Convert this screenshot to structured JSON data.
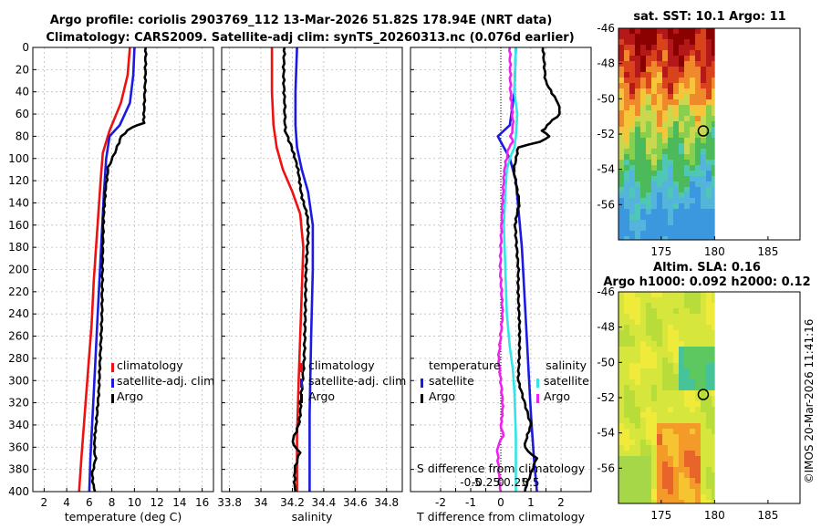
{
  "title": {
    "line1": "Argo profile: coriolis 2903769_112 13-Mar-2026 51.82S 178.94E (NRT data)",
    "line2": "Climatology: CARS2009. Satellite-adj clim: synTS_20260313.nc (0.076d earlier)"
  },
  "stamp": "©IMOS 20-Mar-2026 11:41:16",
  "colors": {
    "climatology": "#ee1111",
    "satellite": "#1a1ae0",
    "argo": "#000000",
    "sat_salinity": "#33e5e5",
    "argo_salinity": "#ee22ee"
  },
  "chart_data": [
    {
      "id": "temperature",
      "type": "line",
      "xlabel": "temperature (deg C)",
      "xlim": [
        1,
        17
      ],
      "xticks": [
        2,
        4,
        6,
        8,
        10,
        12,
        14,
        16
      ],
      "ylim": [
        0,
        400
      ],
      "yticks": [
        0,
        20,
        40,
        60,
        80,
        100,
        120,
        140,
        160,
        180,
        200,
        220,
        240,
        260,
        280,
        300,
        320,
        340,
        360,
        380,
        400
      ],
      "legend": {
        "labels": [
          "climatology",
          "satellite-adj. clim",
          "Argo"
        ]
      },
      "series": [
        {
          "name": "climatology",
          "color": "climatology",
          "x": [
            9.6,
            9.4,
            8.8,
            7.8,
            7.2,
            7.0,
            6.8,
            6.6,
            6.4,
            6.2,
            5.9,
            5.6,
            5.3,
            5.1
          ],
          "y": [
            0,
            25,
            50,
            75,
            95,
            120,
            150,
            180,
            210,
            250,
            290,
            330,
            370,
            400
          ]
        },
        {
          "name": "satellite-adj. clim",
          "color": "satellite",
          "x": [
            10.0,
            9.9,
            9.6,
            8.7,
            7.8,
            7.5,
            7.3,
            7.1,
            6.9,
            6.7,
            6.5,
            6.3,
            6.1,
            6.0
          ],
          "y": [
            0,
            25,
            50,
            70,
            80,
            100,
            130,
            170,
            210,
            250,
            290,
            330,
            370,
            400
          ]
        },
        {
          "name": "Argo",
          "color": "argo",
          "x": [
            11.0,
            11.0,
            10.9,
            10.8,
            9.8,
            8.8,
            8.2,
            7.7,
            7.4,
            7.3,
            7.2,
            7.1,
            6.9,
            6.8,
            6.6,
            6.5,
            6.6,
            6.3,
            6.5
          ],
          "y": [
            0,
            30,
            60,
            68,
            72,
            80,
            95,
            108,
            125,
            160,
            200,
            240,
            280,
            310,
            340,
            360,
            370,
            385,
            400
          ]
        }
      ]
    },
    {
      "id": "salinity",
      "type": "line",
      "xlabel": "salinity",
      "xlim": [
        33.75,
        34.9
      ],
      "xticks": [
        33.8,
        34,
        34.2,
        34.4,
        34.6,
        34.8
      ],
      "xticklabels": [
        "33.8",
        "34",
        "34.2",
        "34.4",
        "34.6",
        "34.8"
      ],
      "ylim": [
        0,
        400
      ],
      "legend": {
        "labels": [
          "climatology",
          "satellite-adj. clim",
          "Argo"
        ]
      },
      "series": [
        {
          "name": "climatology",
          "color": "climatology",
          "x": [
            34.07,
            34.07,
            34.08,
            34.1,
            34.14,
            34.2,
            34.25,
            34.27,
            34.26,
            34.25,
            34.24,
            34.23,
            34.23
          ],
          "y": [
            0,
            40,
            70,
            90,
            110,
            130,
            150,
            180,
            220,
            260,
            300,
            350,
            400
          ]
        },
        {
          "name": "satellite-adj. clim",
          "color": "satellite",
          "x": [
            34.23,
            34.22,
            34.22,
            34.23,
            34.26,
            34.3,
            34.33,
            34.33,
            34.32,
            34.31,
            34.31
          ],
          "y": [
            0,
            40,
            70,
            90,
            110,
            130,
            160,
            200,
            260,
            330,
            400
          ]
        },
        {
          "name": "Argo",
          "color": "argo",
          "x": [
            34.15,
            34.15,
            34.16,
            34.2,
            34.23,
            34.26,
            34.29,
            34.3,
            34.29,
            34.28,
            34.27,
            34.25,
            34.24,
            34.2,
            34.24,
            34.21,
            34.22
          ],
          "y": [
            0,
            50,
            75,
            90,
            110,
            130,
            150,
            170,
            200,
            240,
            280,
            320,
            340,
            355,
            365,
            380,
            400
          ]
        }
      ]
    },
    {
      "id": "difference",
      "type": "line",
      "xlabel": "T difference from climatology",
      "xlim": [
        -3,
        3
      ],
      "xticks": [
        -2,
        -1.5,
        -1,
        -0.5,
        0,
        0.5,
        1,
        1.5,
        2
      ],
      "xticklabels": [
        "-2",
        "",
        "-1",
        "",
        "0",
        "",
        "1",
        "",
        "2"
      ],
      "top_axis_label": "S difference from climatology",
      "top_ticks": [
        "-0.5",
        "-0.25",
        "0",
        "0.25",
        "0.5"
      ],
      "ylim": [
        0,
        400
      ],
      "legend": {
        "left_header": "temperature",
        "right_header": "salinity",
        "left_labels": [
          "satellite",
          "Argo"
        ],
        "right_labels": [
          "satellite",
          "Argo"
        ]
      },
      "series": [
        {
          "name": "temperature satellite",
          "color": "satellite",
          "x": [
            0.5,
            0.45,
            0.3,
            -0.1,
            0.3,
            0.5,
            0.6,
            0.7,
            0.8,
            0.9,
            1.0,
            1.1,
            1.2
          ],
          "y": [
            0,
            40,
            70,
            80,
            100,
            120,
            150,
            180,
            230,
            280,
            330,
            370,
            400
          ]
        },
        {
          "name": "temperature Argo",
          "color": "argo",
          "x": [
            1.4,
            1.5,
            1.9,
            2.0,
            1.6,
            1.5,
            1.4,
            1.6,
            1.3,
            0.6,
            0.4,
            0.6,
            0.5,
            0.6,
            0.6,
            0.6,
            1.0,
            0.8,
            1.2,
            0.8
          ],
          "y": [
            0,
            30,
            50,
            60,
            68,
            72,
            75,
            80,
            85,
            90,
            110,
            140,
            160,
            200,
            250,
            300,
            340,
            360,
            370,
            400
          ]
        },
        {
          "name": "salinity satellite",
          "color": "sat_salinity",
          "x": [
            0.5,
            0.45,
            0.55,
            0.5,
            0.45,
            0.3,
            0.2,
            0.15,
            0.1,
            0.15,
            0.2,
            0.3,
            0.4,
            0.45,
            0.5,
            0.5
          ],
          "y": [
            0,
            40,
            60,
            80,
            90,
            100,
            110,
            130,
            160,
            200,
            240,
            270,
            290,
            310,
            350,
            400
          ]
        },
        {
          "name": "salinity Argo",
          "color": "argo_salinity",
          "x": [
            0.3,
            0.3,
            0.4,
            0.3,
            0.4,
            0.3,
            0.2,
            0.1,
            0.05,
            0.0,
            0.05,
            -0.1,
            0.05,
            0.0,
            0.05,
            -0.1,
            0.0
          ],
          "y": [
            0,
            40,
            70,
            80,
            85,
            90,
            100,
            120,
            160,
            200,
            240,
            280,
            320,
            340,
            350,
            360,
            400
          ]
        }
      ]
    },
    {
      "id": "sst_map",
      "type": "heatmap",
      "title": "sat. SST: 10.1 Argo: 11",
      "xlim": [
        171,
        188
      ],
      "ylim": [
        -58,
        -46
      ],
      "xticks": [
        175,
        180,
        185
      ],
      "yticks": [
        -46,
        -48,
        -50,
        -52,
        -54,
        -56
      ],
      "float_location": [
        178.94,
        -51.82
      ],
      "colors": [
        "#8b0000",
        "#b41818",
        "#d8431c",
        "#ee8a2a",
        "#f6c63a",
        "#c9d84e",
        "#88cf4d",
        "#4cb95a",
        "#4ec7b4",
        "#54b4dc",
        "#3c98de"
      ]
    },
    {
      "id": "sla_map",
      "type": "heatmap",
      "title": "Altim. SLA: 0.16",
      "subtitle": "Argo h1000: 0.092 h2000: 0.12",
      "xlim": [
        171,
        188
      ],
      "ylim": [
        -58,
        -46
      ],
      "xticks": [
        175,
        180,
        185
      ],
      "yticks": [
        -46,
        -48,
        -50,
        -52,
        -54,
        -56
      ],
      "float_location": [
        178.94,
        -51.82
      ],
      "colors": [
        "#b8dc3a",
        "#d7e63c",
        "#f0ea3a",
        "#f7c431",
        "#f39a28",
        "#e8642a",
        "#a5d748",
        "#5ec860",
        "#47c39a"
      ]
    }
  ]
}
